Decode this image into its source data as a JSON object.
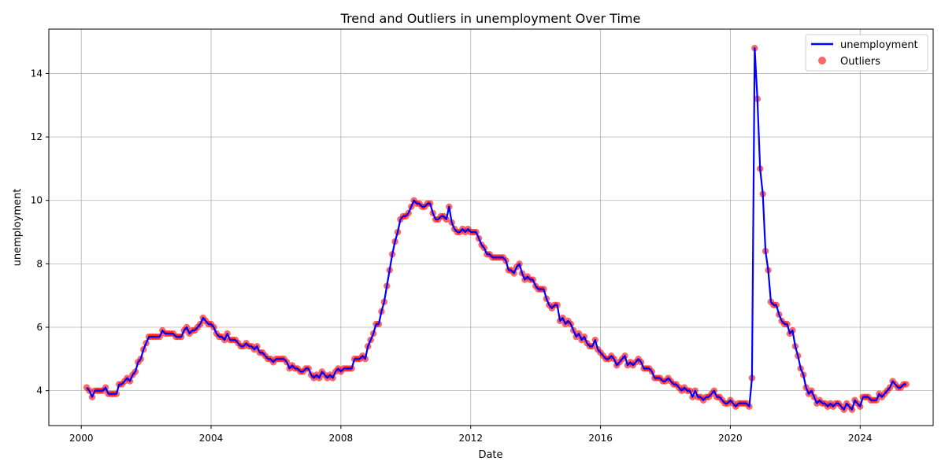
{
  "chart_data": {
    "type": "line",
    "title": "Trend and Outliers in unemployment Over Time",
    "xlabel": "Date",
    "ylabel": "unemployment",
    "xlim": [
      "1999-01-01",
      "2026-04-01"
    ],
    "ylim": [
      2.9,
      15.4
    ],
    "x_ticks": [
      "2000",
      "2004",
      "2008",
      "2012",
      "2016",
      "2020",
      "2024"
    ],
    "y_ticks": [
      "4",
      "6",
      "8",
      "10",
      "12",
      "14"
    ],
    "grid": true,
    "legend_position": "top-right",
    "colors": {
      "line": "#0000ff",
      "outliers": "#ff0000"
    },
    "series": [
      {
        "name": "unemployment",
        "kind": "line",
        "start": "2000-03",
        "frequency": "monthly",
        "values": [
          4.1,
          4.0,
          3.8,
          4.0,
          4.0,
          4.0,
          4.0,
          4.1,
          3.9,
          3.9,
          3.9,
          3.9,
          4.2,
          4.2,
          4.3,
          4.4,
          4.3,
          4.5,
          4.6,
          4.9,
          5.0,
          5.3,
          5.5,
          5.7,
          5.7,
          5.7,
          5.7,
          5.7,
          5.9,
          5.8,
          5.8,
          5.8,
          5.8,
          5.7,
          5.7,
          5.7,
          5.9,
          6.0,
          5.8,
          5.9,
          5.9,
          6.0,
          6.1,
          6.3,
          6.2,
          6.1,
          6.1,
          6.0,
          5.8,
          5.7,
          5.7,
          5.6,
          5.8,
          5.6,
          5.6,
          5.6,
          5.5,
          5.4,
          5.4,
          5.5,
          5.4,
          5.4,
          5.3,
          5.4,
          5.2,
          5.2,
          5.1,
          5.0,
          5.0,
          4.9,
          5.0,
          5.0,
          5.0,
          5.0,
          4.9,
          4.7,
          4.8,
          4.7,
          4.7,
          4.6,
          4.6,
          4.7,
          4.7,
          4.5,
          4.4,
          4.5,
          4.4,
          4.6,
          4.5,
          4.4,
          4.5,
          4.4,
          4.6,
          4.7,
          4.6,
          4.7,
          4.7,
          4.7,
          4.7,
          5.0,
          5.0,
          5.0,
          5.1,
          5.0,
          5.4,
          5.6,
          5.8,
          6.1,
          6.1,
          6.5,
          6.8,
          7.3,
          7.8,
          8.3,
          8.7,
          9.0,
          9.4,
          9.5,
          9.5,
          9.6,
          9.8,
          10.0,
          9.9,
          9.9,
          9.8,
          9.8,
          9.9,
          9.9,
          9.6,
          9.4,
          9.4,
          9.5,
          9.5,
          9.4,
          9.8,
          9.3,
          9.1,
          9.0,
          9.0,
          9.1,
          9.0,
          9.1,
          9.0,
          9.0,
          9.0,
          8.8,
          8.6,
          8.5,
          8.3,
          8.3,
          8.2,
          8.2,
          8.2,
          8.2,
          8.2,
          8.1,
          7.8,
          7.8,
          7.7,
          7.9,
          8.0,
          7.7,
          7.5,
          7.6,
          7.5,
          7.5,
          7.3,
          7.2,
          7.2,
          7.2,
          6.9,
          6.7,
          6.6,
          6.7,
          6.7,
          6.2,
          6.3,
          6.1,
          6.2,
          6.1,
          5.9,
          5.7,
          5.8,
          5.6,
          5.7,
          5.5,
          5.4,
          5.4,
          5.6,
          5.3,
          5.2,
          5.1,
          5.0,
          5.0,
          5.1,
          5.0,
          4.8,
          4.9,
          5.0,
          5.1,
          4.8,
          4.9,
          4.8,
          4.9,
          5.0,
          4.9,
          4.7,
          4.7,
          4.7,
          4.6,
          4.4,
          4.4,
          4.4,
          4.3,
          4.3,
          4.4,
          4.3,
          4.2,
          4.2,
          4.1,
          4.0,
          4.1,
          4.0,
          4.0,
          3.8,
          4.0,
          3.8,
          3.8,
          3.7,
          3.8,
          3.8,
          3.9,
          4.0,
          3.8,
          3.8,
          3.7,
          3.6,
          3.6,
          3.7,
          3.6,
          3.5,
          3.6,
          3.6,
          3.6,
          3.6,
          3.5,
          4.4,
          14.8,
          13.2,
          11.0,
          10.2,
          8.4,
          7.8,
          6.8,
          6.7,
          6.7,
          6.4,
          6.2,
          6.1,
          6.1,
          5.8,
          5.9,
          5.4,
          5.1,
          4.7,
          4.5,
          4.1,
          3.9,
          4.0,
          3.8,
          3.6,
          3.7,
          3.6,
          3.6,
          3.5,
          3.6,
          3.5,
          3.6,
          3.6,
          3.5,
          3.4,
          3.6,
          3.5,
          3.4,
          3.7,
          3.6,
          3.5,
          3.8,
          3.8,
          3.8,
          3.7,
          3.7,
          3.7,
          3.9,
          3.8,
          3.9,
          4.0,
          4.1,
          4.3,
          4.2,
          4.1,
          4.1,
          4.2,
          4.2
        ]
      },
      {
        "name": "Outliers",
        "kind": "scatter",
        "same_points_as": "unemployment"
      }
    ]
  }
}
